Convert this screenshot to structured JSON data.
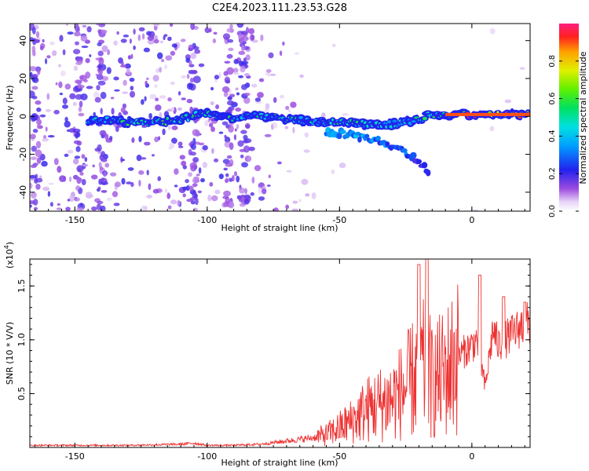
{
  "title": "C2E4.2023.111.23.53.G28",
  "top_panel": {
    "xlabel": "Height of straight line (km)",
    "ylabel": "Frequency (Hz)",
    "xticks": [
      -150,
      -100,
      -50,
      0
    ],
    "yticks": [
      -40,
      -20,
      0,
      20,
      40
    ],
    "colorbar": {
      "label": "Normalized spectral amplitude",
      "ticks": [
        "0.0",
        "0.2",
        "0.4",
        "0.6",
        "0.8"
      ]
    }
  },
  "bottom_panel": {
    "xlabel": "Height of straight line (km)",
    "ylabel": "SNR (10 * V/V)",
    "exponent_label": "(x10",
    "exponent_power": "4",
    "exponent_close": ")",
    "xticks": [
      -150,
      -100,
      -50,
      0
    ],
    "yticks": [
      "0.5",
      "1.0",
      "1.5"
    ]
  },
  "chart_data": [
    {
      "type": "heatmap",
      "title": "C2E4.2023.111.23.53.G28",
      "xlabel": "Height of straight line (km)",
      "ylabel": "Frequency (Hz)",
      "xlim": [
        -167,
        22
      ],
      "ylim": [
        -50,
        49
      ],
      "colorbar": {
        "label": "Normalized spectral amplitude",
        "range": [
          0,
          1
        ],
        "colormap": "rainbow"
      },
      "strong_band": [
        {
          "x": -145,
          "y": -2,
          "v": 0.35
        },
        {
          "x": -140,
          "y": -2,
          "v": 0.45
        },
        {
          "x": -130,
          "y": -3,
          "v": 0.5
        },
        {
          "x": -120,
          "y": -3,
          "v": 0.5
        },
        {
          "x": -112,
          "y": -2,
          "v": 0.55
        },
        {
          "x": -100,
          "y": 2,
          "v": 0.5
        },
        {
          "x": -92,
          "y": -1,
          "v": 0.5
        },
        {
          "x": -80,
          "y": 0,
          "v": 0.45
        },
        {
          "x": -70,
          "y": -1,
          "v": 0.5
        },
        {
          "x": -60,
          "y": -3,
          "v": 0.45
        },
        {
          "x": -48,
          "y": -3,
          "v": 0.5
        },
        {
          "x": -35,
          "y": -5,
          "v": 0.4
        },
        {
          "x": -25,
          "y": -3,
          "v": 0.45
        },
        {
          "x": -15,
          "y": 1,
          "v": 0.5
        },
        {
          "x": -5,
          "y": 1,
          "v": 0.85
        },
        {
          "x": 5,
          "y": 1,
          "v": 0.85
        },
        {
          "x": 15,
          "y": 1,
          "v": 0.85
        },
        {
          "x": 22,
          "y": 1,
          "v": 0.8
        }
      ],
      "descending_branch": [
        {
          "x": -55,
          "y": -8,
          "v": 0.35
        },
        {
          "x": -45,
          "y": -10,
          "v": 0.35
        },
        {
          "x": -35,
          "y": -13,
          "v": 0.3
        },
        {
          "x": -27,
          "y": -17,
          "v": 0.3
        },
        {
          "x": -22,
          "y": -22,
          "v": 0.25
        },
        {
          "x": -16,
          "y": -29,
          "v": 0.2
        }
      ]
    },
    {
      "type": "line",
      "xlabel": "Height of straight line (km)",
      "ylabel": "SNR (10 * V/V)",
      "y_units_multiplier": 10000,
      "xlim": [
        -167,
        22
      ],
      "ylim": [
        0,
        1.75
      ],
      "series": [
        {
          "color": "#ee3333",
          "x": [
            -167,
            -150,
            -130,
            -110,
            -105,
            -100,
            -90,
            -80,
            -70,
            -60,
            -55,
            -50,
            -45,
            -40,
            -35,
            -30,
            -25,
            -20,
            -17,
            -15,
            -10,
            -5,
            0,
            2,
            5,
            8,
            10,
            15,
            20,
            22
          ],
          "y": [
            0.02,
            0.02,
            0.02,
            0.03,
            0.04,
            0.02,
            0.02,
            0.03,
            0.06,
            0.09,
            0.12,
            0.18,
            0.25,
            0.35,
            0.4,
            0.45,
            0.55,
            0.7,
            0.75,
            0.6,
            0.7,
            0.85,
            0.95,
            1.0,
            0.55,
            1.1,
            0.95,
            1.05,
            1.15,
            1.15
          ],
          "peaks": [
            {
              "x": -20,
              "y": 1.7
            },
            {
              "x": -17,
              "y": 1.75
            },
            {
              "x": 3,
              "y": 1.6
            },
            {
              "x": 12,
              "y": 1.4
            },
            {
              "x": 20,
              "y": 1.35
            }
          ]
        }
      ]
    }
  ]
}
